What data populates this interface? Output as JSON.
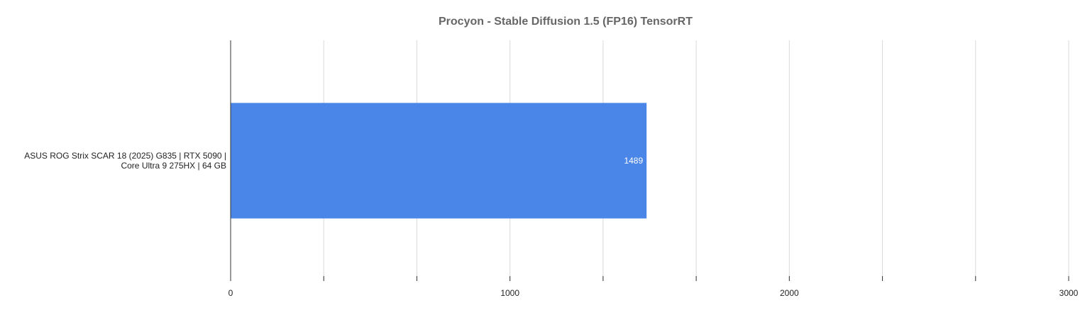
{
  "chart_data": {
    "type": "bar",
    "orientation": "horizontal",
    "title": "Procyon - Stable Diffusion 1.5 (FP16) TensorRT",
    "categories": [
      "ASUS ROG Strix SCAR 18 (2025) G835 | RTX 5090 | Core Ultra 9 275HX | 64 GB"
    ],
    "values": [
      1489
    ],
    "color": "#4a86e8",
    "xlim": [
      0,
      3000
    ],
    "xticks": [
      0,
      1000,
      2000,
      3000
    ],
    "xminor": [
      333.33,
      666.67,
      1333.33,
      1666.67,
      2333.33,
      2666.67
    ],
    "grid": true
  }
}
